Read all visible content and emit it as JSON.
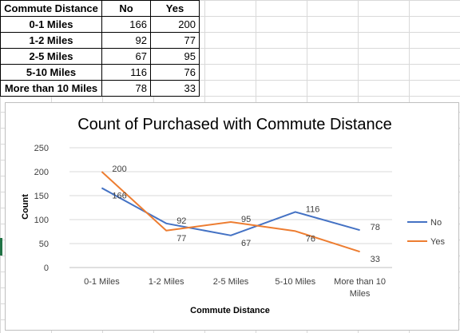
{
  "table": {
    "headers": [
      "Commute Distance",
      "No",
      "Yes"
    ],
    "rows": [
      [
        "0-1 Miles",
        "166",
        "200"
      ],
      [
        "1-2 Miles",
        "92",
        "77"
      ],
      [
        "2-5 Miles",
        "67",
        "95"
      ],
      [
        "5-10 Miles",
        "116",
        "76"
      ],
      [
        "More than 10 Miles",
        "78",
        "33"
      ]
    ]
  },
  "chart_data": {
    "type": "line",
    "title": "Count of Purchased with Commute Distance",
    "xlabel": "Commute Distance",
    "ylabel": "Count",
    "categories": [
      "0-1 Miles",
      "1-2 Miles",
      "2-5 Miles",
      "5-10 Miles",
      "More than 10 Miles"
    ],
    "category_lines": [
      [
        "0-1 Miles"
      ],
      [
        "1-2 Miles"
      ],
      [
        "2-5 Miles"
      ],
      [
        "5-10 Miles"
      ],
      [
        "More than 10",
        "Miles"
      ]
    ],
    "series": [
      {
        "name": "No",
        "values": [
          166,
          92,
          67,
          116,
          78
        ],
        "color": "#4472c4"
      },
      {
        "name": "Yes",
        "values": [
          200,
          77,
          95,
          76,
          33
        ],
        "color": "#ed7d31"
      }
    ],
    "ylim": [
      0,
      250
    ],
    "yticks": [
      0,
      50,
      100,
      150,
      200,
      250
    ],
    "grid": true,
    "legend": "right",
    "data_labels": true
  }
}
